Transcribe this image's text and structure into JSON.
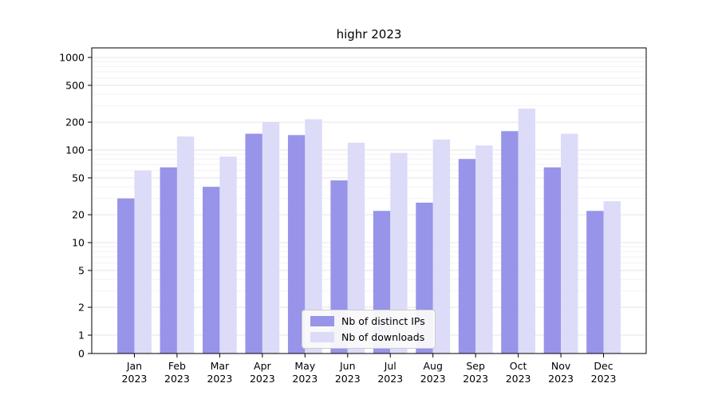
{
  "chart_data": {
    "type": "bar",
    "title": "highr 2023",
    "categories": [
      "Jan",
      "Feb",
      "Mar",
      "Apr",
      "May",
      "Jun",
      "Jul",
      "Aug",
      "Sep",
      "Oct",
      "Nov",
      "Dec"
    ],
    "year_label": "2023",
    "series": [
      {
        "name": "Nb of distinct IPs",
        "color": "#9794e9",
        "values": [
          30,
          65,
          40,
          150,
          145,
          47,
          22,
          27,
          80,
          160,
          65,
          22
        ]
      },
      {
        "name": "Nb of downloads",
        "color": "#dcdbf8",
        "values": [
          60,
          140,
          85,
          200,
          215,
          120,
          93,
          130,
          112,
          280,
          150,
          28
        ]
      }
    ],
    "yticks": [
      0,
      1,
      2,
      5,
      10,
      20,
      50,
      100,
      200,
      500,
      1000
    ],
    "ylim": [
      0,
      1000
    ],
    "scale": "symlog",
    "grid": true,
    "legend_position": "lower center"
  }
}
